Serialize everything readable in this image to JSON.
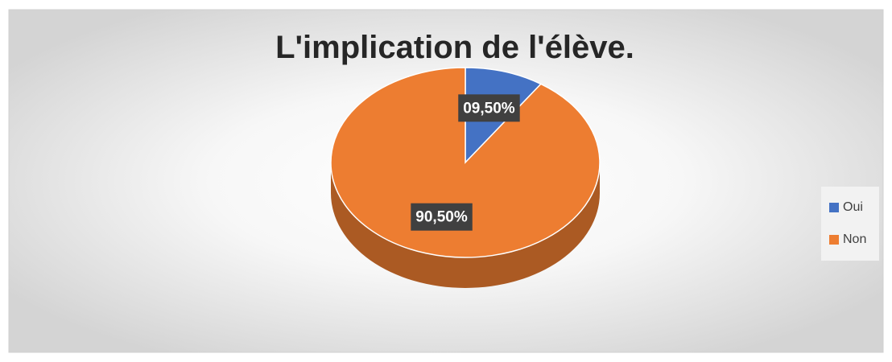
{
  "chart_data": {
    "type": "pie3d",
    "title": "L'implication de l'élève.",
    "categories": [
      "Oui",
      "Non"
    ],
    "values": [
      9.5,
      90.5
    ],
    "value_labels": [
      "09,50%",
      "90,50%"
    ],
    "colors": [
      "#4472c4",
      "#ed7d31"
    ],
    "legend": "right"
  }
}
